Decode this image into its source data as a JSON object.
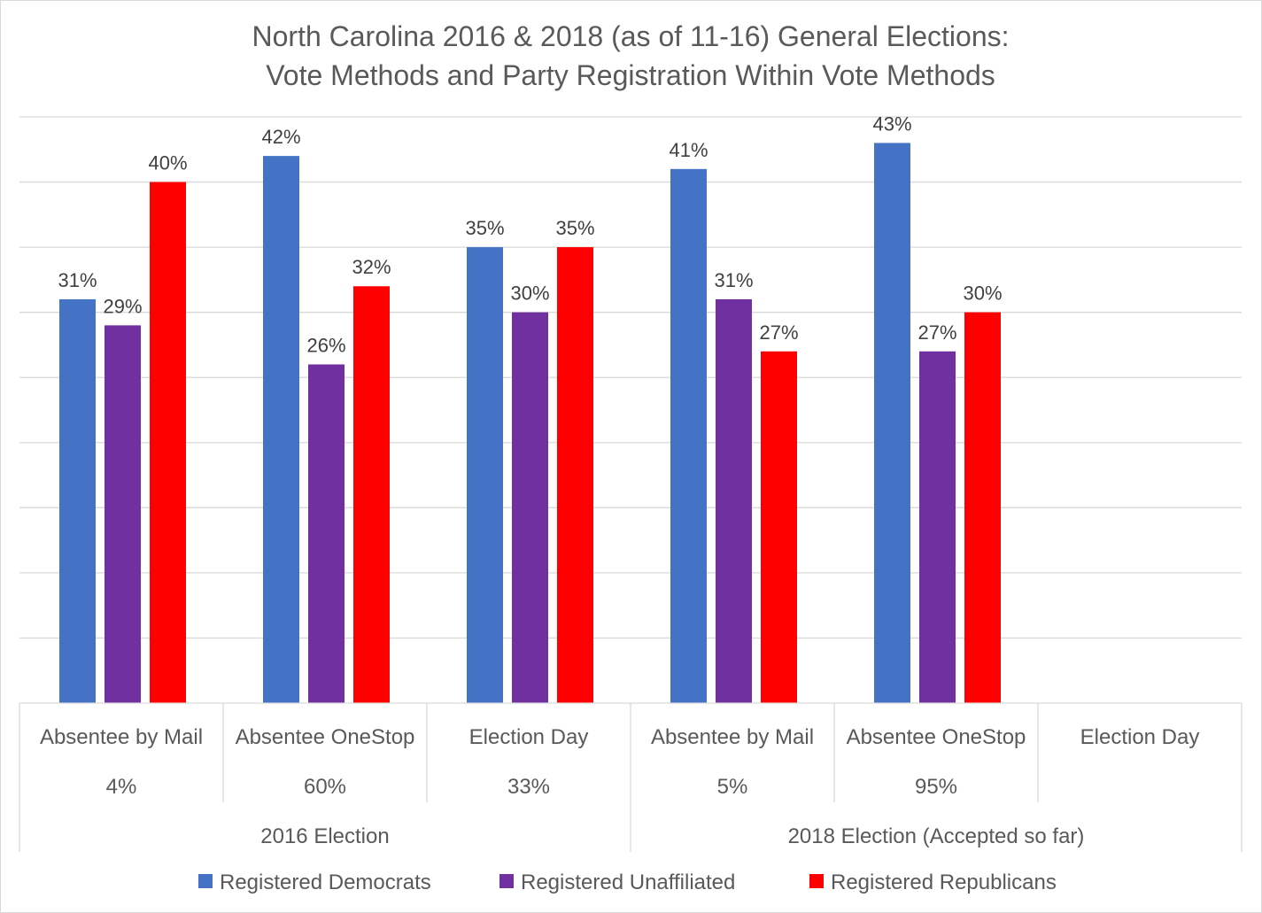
{
  "chart_data": {
    "type": "bar",
    "title": "North Carolina 2016 & 2018 (as of 11-16) General Elections:",
    "subtitle": "Vote Methods and Party Registration Within Vote Methods",
    "xlabel": "",
    "ylabel": "",
    "ylim": [
      0,
      0.45
    ],
    "grid": true,
    "legend_position": "bottom",
    "categories": [
      {
        "method": "Absentee by Mail",
        "share": "4%",
        "group": "2016 Election"
      },
      {
        "method": "Absentee OneStop",
        "share": "60%",
        "group": "2016 Election"
      },
      {
        "method": "Election Day",
        "share": "33%",
        "group": "2016 Election"
      },
      {
        "method": "Absentee by Mail",
        "share": "5%",
        "group": "2018 Election (Accepted so far)"
      },
      {
        "method": "Absentee OneStop",
        "share": "95%",
        "group": "2018 Election (Accepted so far)"
      },
      {
        "method": "Election Day",
        "share": "",
        "group": "2018 Election (Accepted so far)"
      }
    ],
    "groups": [
      "2016 Election",
      "2018 Election (Accepted so far)"
    ],
    "series": [
      {
        "name": "Registered Democrats",
        "color": "#4472c4",
        "values": [
          0.31,
          0.42,
          0.35,
          0.41,
          0.43,
          null
        ],
        "labels": [
          "31%",
          "42%",
          "35%",
          "41%",
          "43%",
          ""
        ]
      },
      {
        "name": "Registered Unaffiliated",
        "color": "#7030a0",
        "values": [
          0.29,
          0.26,
          0.3,
          0.31,
          0.27,
          null
        ],
        "labels": [
          "29%",
          "26%",
          "30%",
          "31%",
          "27%",
          ""
        ]
      },
      {
        "name": "Registered Republicans",
        "color": "#ff0000",
        "values": [
          0.4,
          0.32,
          0.35,
          0.27,
          0.3,
          null
        ],
        "labels": [
          "40%",
          "32%",
          "35%",
          "27%",
          "30%",
          ""
        ]
      }
    ]
  }
}
